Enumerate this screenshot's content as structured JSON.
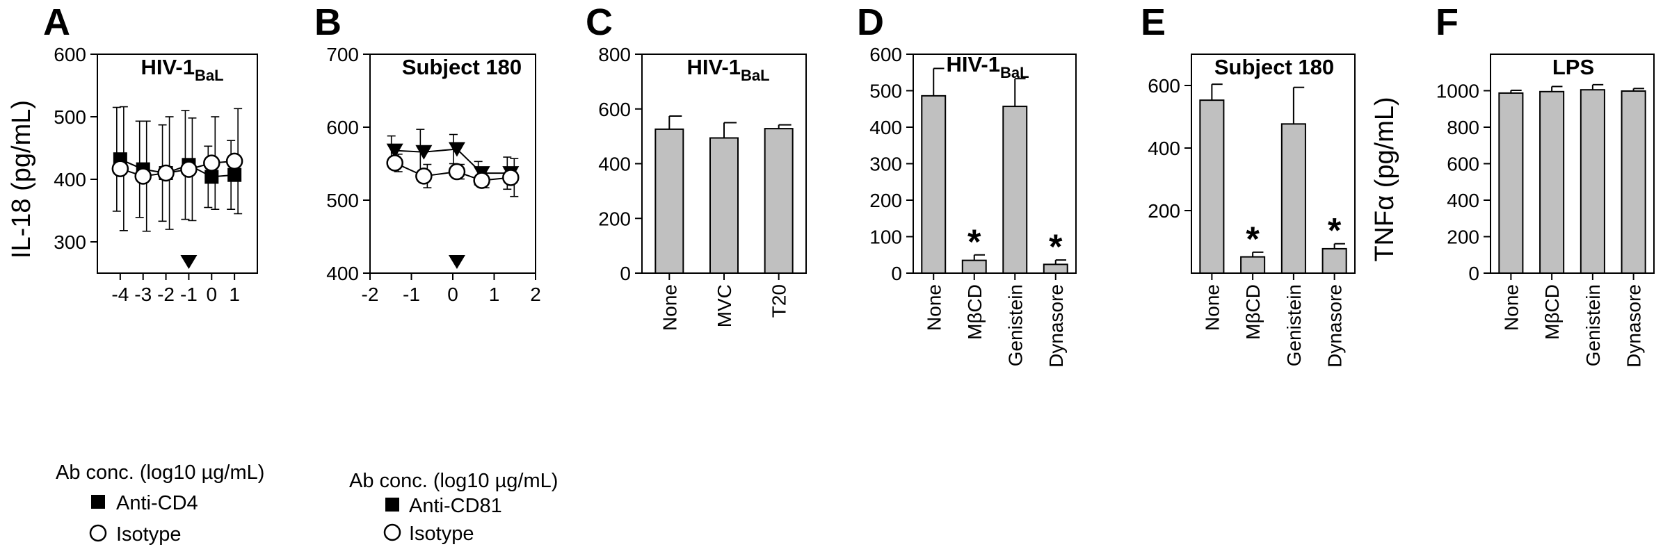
{
  "chart_data": [
    {
      "panel": "A",
      "type": "line",
      "title": "HIV-1",
      "title_sub": "BaL",
      "ylabel": "IL-18 (pg/mL)",
      "xlabel": "Ab conc. (log10 µg/mL)",
      "xlim": [
        -5,
        2
      ],
      "ylim": [
        250,
        600
      ],
      "yticks": [
        300,
        400,
        500,
        600
      ],
      "xticks": [
        -4,
        -3,
        -2,
        -1,
        0,
        1
      ],
      "xtick_labels": [
        "-4",
        "-3",
        "-2",
        "-1",
        "0",
        "1"
      ],
      "arrow_x": -1,
      "series": [
        {
          "name": "Anti-CD4",
          "marker": "square",
          "x": [
            -4,
            -3,
            -2,
            -1,
            0,
            1
          ],
          "y": [
            432,
            416,
            410,
            423,
            404,
            407
          ],
          "err": [
            83,
            77,
            77,
            87,
            49,
            55
          ]
        },
        {
          "name": "Isotype",
          "marker": "circle",
          "x": [
            -4,
            -3,
            -2,
            -1,
            0,
            1
          ],
          "y": [
            417,
            405,
            410,
            416,
            426,
            429
          ],
          "err": [
            99,
            88,
            90,
            82,
            74,
            84
          ]
        }
      ]
    },
    {
      "panel": "B",
      "type": "line",
      "title": "Subject 180",
      "xlabel": "Ab conc. (log10 µg/mL)",
      "xlim": [
        -2,
        2
      ],
      "ylim": [
        400,
        700
      ],
      "yticks": [
        400,
        500,
        600,
        700
      ],
      "xticks": [
        -2,
        -1,
        0,
        1,
        2
      ],
      "xtick_labels": [
        "-2",
        "-1",
        "0",
        "1",
        "2"
      ],
      "arrow_x": 0.1,
      "series": [
        {
          "name": "Anti-CD81",
          "marker": "triangle-down",
          "x": [
            -1.4,
            -0.7,
            0.1,
            0.7,
            1.4
          ],
          "y": [
            568,
            566,
            570,
            537,
            537
          ],
          "err": [
            20,
            31,
            20,
            16,
            22
          ]
        },
        {
          "name": "Isotype",
          "marker": "circle",
          "x": [
            -1.4,
            -0.7,
            0.1,
            0.7,
            1.4
          ],
          "y": [
            551,
            533,
            539,
            527,
            531
          ],
          "err": [
            12,
            16,
            10,
            10,
            26
          ]
        }
      ]
    },
    {
      "panel": "C",
      "type": "bar",
      "title": "HIV-1",
      "title_sub": "BaL",
      "ylim": [
        0,
        800
      ],
      "yticks": [
        0,
        200,
        400,
        600,
        800
      ],
      "categories": [
        "None",
        "MVC",
        "T20"
      ],
      "values": [
        526,
        494,
        528
      ],
      "errors": [
        48,
        56,
        14
      ],
      "significant": [
        false,
        false,
        false
      ]
    },
    {
      "panel": "D",
      "type": "bar",
      "title": "HIV-1",
      "title_sub": "BaL",
      "ylim": [
        0,
        600
      ],
      "yticks": [
        0,
        100,
        200,
        300,
        400,
        500,
        600
      ],
      "categories": [
        "None",
        "MβCD",
        "Genistein",
        "Dynasore"
      ],
      "values": [
        486,
        35,
        457,
        24
      ],
      "errors": [
        75,
        15,
        76,
        12
      ],
      "significant": [
        false,
        true,
        false,
        true
      ]
    },
    {
      "panel": "E",
      "type": "bar",
      "title": "Subject 180",
      "ylim": [
        0,
        700
      ],
      "yticks": [
        200,
        400,
        600
      ],
      "categories": [
        "None",
        "MβCD",
        "Genistein",
        "Dynasore"
      ],
      "values": [
        553,
        52,
        477,
        78
      ],
      "errors": [
        51,
        15,
        117,
        16
      ],
      "significant": [
        false,
        true,
        false,
        true
      ]
    },
    {
      "panel": "F",
      "type": "bar",
      "title": "LPS",
      "ylabel": "TNFα (pg/mL)",
      "ylim": [
        0,
        1200
      ],
      "yticks": [
        0,
        200,
        400,
        600,
        800,
        1000
      ],
      "categories": [
        "None",
        "MβCD",
        "Genistein",
        "Dynasore"
      ],
      "values": [
        987,
        995,
        1005,
        998
      ],
      "errors": [
        15,
        28,
        28,
        14
      ],
      "significant": [
        false,
        false,
        false,
        false
      ]
    }
  ],
  "significance_marker": "*",
  "colors": {
    "bar_fill": "#c0c0c0",
    "ink": "#000000",
    "open_marker": "#ffffff"
  }
}
